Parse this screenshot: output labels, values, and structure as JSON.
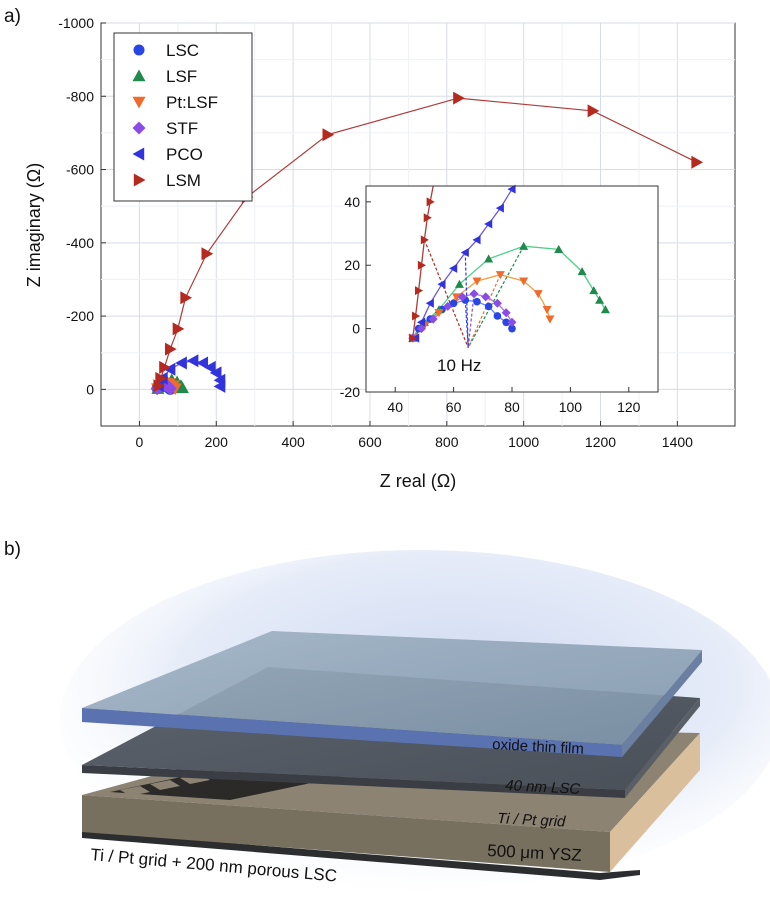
{
  "panel_labels": {
    "a": "a)",
    "b": "b)"
  },
  "colors": {
    "LSC": "#2a45e6",
    "LSF": "#1f8a4c",
    "PtLSF": "#f06a2e",
    "STF": "#8a4be6",
    "PCO": "#3333dd",
    "LSM": "#b52a1f",
    "fit_LSM": "#b03a3a",
    "fit_PCO": "#6a58e0",
    "fit_LSF": "#4ed08a",
    "fit_PtLSF": "#f0a040",
    "fit_STF": "#b070f0",
    "fit_LSC": "#6080ff"
  },
  "chart_data": [
    {
      "type": "scatter",
      "title": "",
      "xlabel": "Z real (Ω)",
      "ylabel": "Z imaginary (Ω)",
      "xlim": [
        -100,
        1550
      ],
      "ylim": [
        -1000,
        100
      ],
      "y_inverted": true,
      "xticks": [
        0,
        200,
        400,
        600,
        800,
        1000,
        1200,
        1400
      ],
      "xtick_labels": [
        "0",
        "200",
        "400",
        "600",
        "800",
        "1000",
        "1200",
        "1400"
      ],
      "yticks": [
        -1000,
        -800,
        -600,
        -400,
        -200,
        0
      ],
      "ytick_labels": [
        "-1000",
        "-800",
        "-600",
        "-400",
        "-200",
        "0"
      ],
      "grid": true,
      "legend_position": "top-left",
      "series": [
        {
          "name": "LSC",
          "marker": "circle",
          "x": [
            46,
            52,
            58,
            64,
            70,
            74,
            78,
            80
          ],
          "y": [
            -2,
            -6,
            -9,
            -10,
            -8,
            -5,
            -2,
            0
          ]
        },
        {
          "name": "LSF",
          "marker": "triangle-up",
          "x": [
            48,
            58,
            70,
            84,
            98,
            108,
            112
          ],
          "y": [
            -2,
            -14,
            -24,
            -26,
            -20,
            -10,
            -4
          ]
        },
        {
          "name": "Pt:LSF",
          "marker": "triangle-down",
          "x": [
            47,
            55,
            66,
            78,
            88,
            93
          ],
          "y": [
            -2,
            -10,
            -17,
            -16,
            -10,
            -2
          ]
        },
        {
          "name": "STF",
          "marker": "diamond",
          "x": [
            46,
            54,
            62,
            70,
            76,
            80
          ],
          "y": [
            -2,
            -8,
            -11,
            -10,
            -7,
            -2
          ]
        },
        {
          "name": "PCO",
          "marker": "triangle-left",
          "x": [
            50,
            60,
            80,
            110,
            140,
            165,
            185,
            200,
            210,
            210
          ],
          "y": [
            -10,
            -30,
            -55,
            -72,
            -78,
            -72,
            -60,
            -45,
            -25,
            -8
          ]
        },
        {
          "name": "LSM",
          "marker": "triangle-right",
          "x": [
            50,
            55,
            65,
            80,
            100,
            120,
            175,
            280,
            490,
            830,
            1180,
            1450
          ],
          "y": [
            -10,
            -30,
            -60,
            -110,
            -165,
            -250,
            -370,
            -525,
            -695,
            -795,
            -760,
            -620
          ]
        }
      ]
    },
    {
      "type": "scatter",
      "title": "",
      "xlim": [
        30,
        130
      ],
      "ylim": [
        -20,
        45
      ],
      "xticks": [
        40,
        60,
        80,
        100,
        120
      ],
      "xtick_labels": [
        "40",
        "60",
        "80",
        "100",
        "120"
      ],
      "yticks": [
        -20,
        0,
        20,
        40
      ],
      "ytick_labels": [
        "-20",
        "0",
        "20",
        "40"
      ],
      "annotation": "10 Hz",
      "annotation_point": [
        65,
        -6
      ],
      "series": [
        {
          "name": "LSC",
          "marker": "circle",
          "x": [
            46,
            48,
            52,
            56,
            60,
            64,
            68,
            72,
            75,
            78,
            80
          ],
          "y": [
            -3,
            0,
            3,
            6,
            8,
            9,
            8.5,
            7,
            4,
            2,
            0
          ]
        },
        {
          "name": "LSF",
          "marker": "triangle-up",
          "x": [
            46,
            50,
            55,
            62,
            72,
            84,
            96,
            104,
            108,
            110,
            112
          ],
          "y": [
            -3,
            2,
            6,
            14,
            22,
            26,
            25,
            18,
            12,
            9,
            6
          ]
        },
        {
          "name": "Pt:LSF",
          "marker": "triangle-down",
          "x": [
            46,
            50,
            55,
            61,
            68,
            76,
            84,
            89,
            92,
            93
          ],
          "y": [
            -3,
            1,
            5,
            10,
            15,
            17,
            15,
            11,
            6,
            3
          ]
        },
        {
          "name": "STF",
          "marker": "diamond",
          "x": [
            46,
            49,
            53,
            58,
            63,
            67,
            71,
            75,
            78,
            80
          ],
          "y": [
            -3,
            0,
            3,
            7,
            10,
            11,
            10,
            8,
            5,
            2
          ]
        },
        {
          "name": "PCO",
          "marker": "triangle-left",
          "x": [
            47,
            49,
            52,
            56,
            60,
            64,
            68,
            72,
            76,
            80
          ],
          "y": [
            -3,
            2,
            8,
            14,
            19,
            24,
            28,
            33,
            38,
            44
          ]
        },
        {
          "name": "LSM",
          "marker": "triangle-right",
          "x": [
            46,
            47,
            48,
            49,
            50,
            51,
            52,
            53
          ],
          "y": [
            -3,
            4,
            12,
            20,
            28,
            35,
            40,
            45
          ]
        }
      ]
    }
  ],
  "diagram": {
    "layers": {
      "top": "oxide thin film",
      "lsc": "40 nm LSC",
      "grid": "Ti / Pt grid",
      "ysz": "500 μm YSZ",
      "bottom": "Ti / Pt grid + 200 nm porous LSC"
    }
  }
}
